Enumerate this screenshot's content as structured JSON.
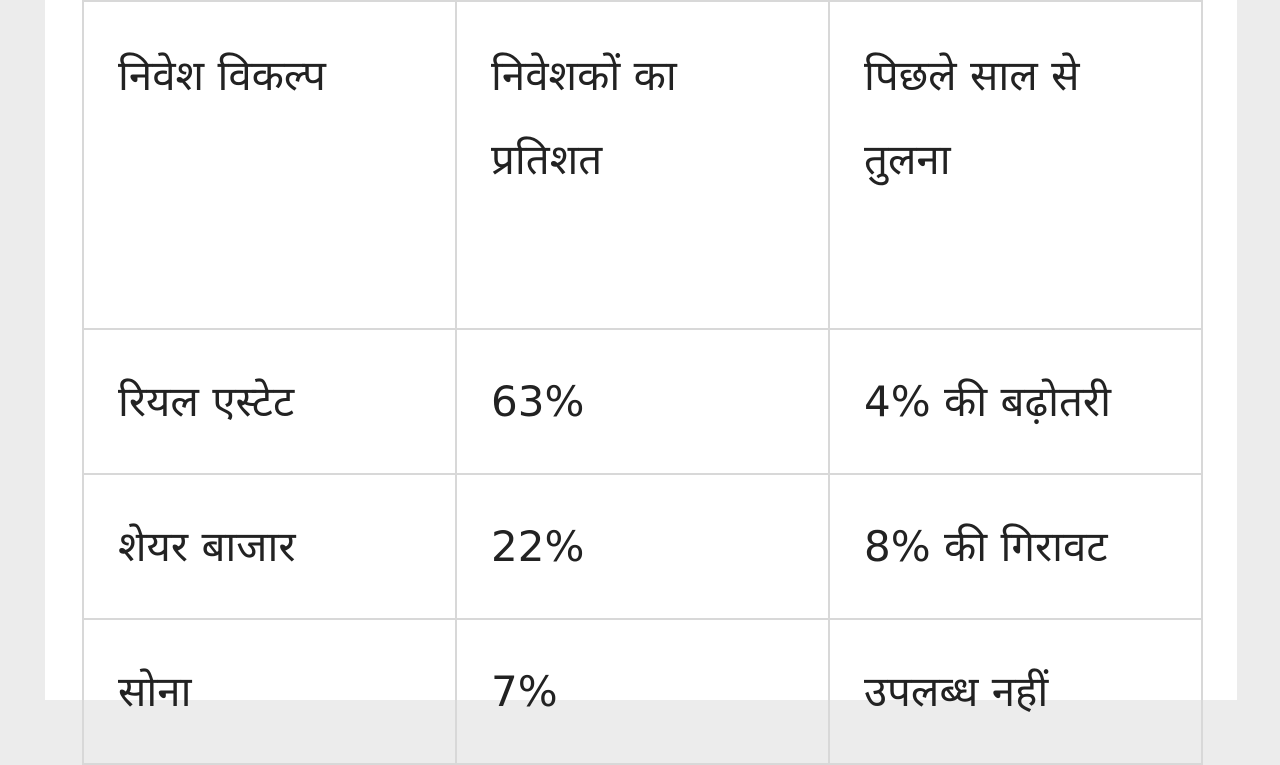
{
  "table": {
    "headers": [
      "निवेश विकल्प",
      "निवेशकों का प्रतिशत",
      "पिछले  साल से तुलना"
    ],
    "rows": [
      [
        "रियल एस्टेट",
        "63%",
        "4% की बढ़ोतरी"
      ],
      [
        "शेयर बाजार",
        "22%",
        "8% की गिरावट"
      ],
      [
        "सोना",
        "7%",
        "उपलब्ध नहीं"
      ]
    ]
  }
}
